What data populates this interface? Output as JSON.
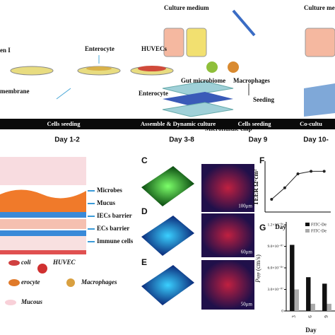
{
  "top": {
    "culture_medium_1": "Culture medium",
    "culture_medium_2": "Culture me",
    "collagen": "en I",
    "membrane": "membrane",
    "enterocyte_1": "Enterocyte",
    "huvecs": "HUVECs",
    "enterocyte_2": "Enterocyte",
    "gut_microbiome": "Gut microbiome",
    "macrophages": "Macrophages",
    "seeding": "Seeding",
    "chip": "Microfluidic chip"
  },
  "timeline": {
    "stages": [
      "Cells seeding",
      "Assemble & Dynamic culture",
      "Cells seeding",
      "Co-cultu"
    ],
    "days": [
      "Day 1-2",
      "Day 3-8",
      "Day 9",
      "Day 10-"
    ]
  },
  "model": {
    "layers": [
      "Microbes",
      "Mucus",
      "IECs barrier",
      "ECs barrier",
      "Immune cells"
    ],
    "legend": [
      "coli",
      "HUVEC",
      "erocyte",
      "Macrophages",
      "Mucous"
    ]
  },
  "panels": {
    "C": {
      "label": "C",
      "scale": "100μm"
    },
    "D": {
      "label": "D",
      "scale": "60μm"
    },
    "E": {
      "label": "E",
      "scale": "50μm"
    }
  },
  "chart_data": [
    {
      "type": "line",
      "label": "F",
      "y_label": "TEER Ω·cm²",
      "x_label": "Day",
      "x": [
        1,
        3,
        5,
        7,
        9
      ],
      "values": [
        100,
        190,
        300,
        320,
        320
      ],
      "xlim": [
        0,
        10
      ],
      "ylim": [
        0,
        400
      ],
      "color": "#222222"
    },
    {
      "type": "bar",
      "label": "G",
      "y_label_main": "P",
      "y_label_sub": "app",
      "y_label_unit": " (cm/s)",
      "x_label": "Day",
      "categories": [
        "3",
        "6",
        "9"
      ],
      "series": [
        {
          "name": "FITC-De",
          "color": "#111111",
          "values": [
            9.2e-07,
            4.7e-07,
            3.8e-07
          ]
        },
        {
          "name": "FITC-De",
          "color": "#aaaaaa",
          "values": [
            3e-07,
            1e-07,
            1e-07
          ]
        }
      ],
      "ylim": [
        0,
        1.2e-06
      ],
      "yticks": [
        {
          "value": 0,
          "label": "0"
        },
        {
          "value": 3e-07,
          "label": "3.0×10⁻⁰⁷"
        },
        {
          "value": 6e-07,
          "label": "6.0×10⁻⁰⁷"
        },
        {
          "value": 9e-07,
          "label": "9.0×10⁻⁰⁷"
        },
        {
          "value": 1.2e-06,
          "label": "1.2×10⁻⁰⁶"
        }
      ]
    }
  ]
}
